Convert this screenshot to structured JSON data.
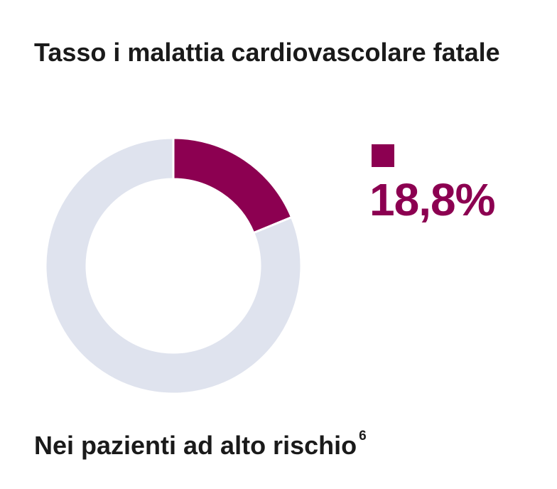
{
  "chart_data": {
    "type": "donut",
    "title": "Tasso i malattia cardiovascolare fatale",
    "categories": [
      null,
      null
    ],
    "values": [
      18.8,
      81.2
    ],
    "value_labels": [
      "18,8%",
      null
    ],
    "colors": [
      "#8c0051",
      "#dfe3ee"
    ],
    "caption": "Nei pazienti ad alto rischio",
    "caption_ref": "6"
  }
}
